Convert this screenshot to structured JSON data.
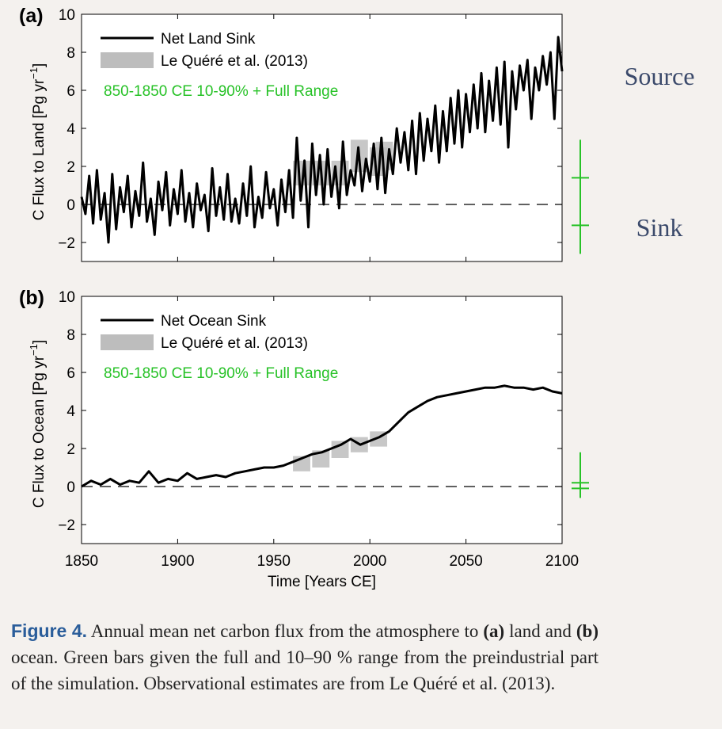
{
  "chart_data": [
    {
      "type": "line",
      "panel_label": "(a)",
      "ylabel": "C Flux to Land [Pg yr",
      "ylabel_exp": "−1",
      "ylabel_close": "]",
      "xlim": [
        1850,
        2100
      ],
      "ylim": [
        -3,
        10
      ],
      "yticks": [
        "−2",
        "0",
        "2",
        "4",
        "6",
        "8",
        "10"
      ],
      "ytick_values": [
        -2,
        0,
        2,
        4,
        6,
        8,
        10
      ],
      "legend": {
        "line_label": "Net Land Sink",
        "box_label": "Le Quéré et al. (2013)",
        "range_label": "850-1850 CE 10-90% + Full Range"
      },
      "annotations": {
        "upper": "Source",
        "lower": "Sink"
      },
      "series": [
        {
          "name": "Net Land Sink",
          "x": [
            1850,
            1852,
            1854,
            1856,
            1858,
            1860,
            1862,
            1864,
            1866,
            1868,
            1870,
            1872,
            1874,
            1876,
            1878,
            1880,
            1882,
            1884,
            1886,
            1888,
            1890,
            1892,
            1894,
            1896,
            1898,
            1900,
            1902,
            1904,
            1906,
            1908,
            1910,
            1912,
            1914,
            1916,
            1918,
            1920,
            1922,
            1924,
            1926,
            1928,
            1930,
            1932,
            1934,
            1936,
            1938,
            1940,
            1942,
            1944,
            1946,
            1948,
            1950,
            1952,
            1954,
            1956,
            1958,
            1960,
            1962,
            1964,
            1966,
            1968,
            1970,
            1972,
            1974,
            1976,
            1978,
            1980,
            1982,
            1984,
            1986,
            1988,
            1990,
            1992,
            1994,
            1996,
            1998,
            2000,
            2002,
            2004,
            2006,
            2008,
            2010,
            2012,
            2014,
            2016,
            2018,
            2020,
            2022,
            2024,
            2026,
            2028,
            2030,
            2032,
            2034,
            2036,
            2038,
            2040,
            2042,
            2044,
            2046,
            2048,
            2050,
            2052,
            2054,
            2056,
            2058,
            2060,
            2062,
            2064,
            2066,
            2068,
            2070,
            2072,
            2074,
            2076,
            2078,
            2080,
            2082,
            2084,
            2086,
            2088,
            2090,
            2092,
            2094,
            2096,
            2098,
            2100
          ],
          "values": [
            0.4,
            -0.5,
            1.5,
            -1.0,
            1.8,
            -0.8,
            0.6,
            -2.0,
            1.6,
            -1.3,
            0.9,
            -0.4,
            1.5,
            -1.2,
            0.7,
            -0.6,
            2.2,
            -0.9,
            0.3,
            -1.6,
            1.2,
            -0.3,
            1.7,
            -1.1,
            0.8,
            -0.5,
            1.8,
            -0.9,
            0.6,
            -1.2,
            1.1,
            -0.3,
            0.5,
            -1.4,
            1.9,
            -0.6,
            0.9,
            -0.8,
            1.6,
            -0.9,
            0.3,
            -1.0,
            1.1,
            -0.6,
            2.0,
            -1.2,
            0.4,
            -0.7,
            1.7,
            -0.2,
            0.8,
            -1.1,
            1.3,
            -0.4,
            1.8,
            -0.7,
            3.5,
            0.2,
            2.3,
            -1.2,
            3.2,
            0.5,
            2.6,
            0.0,
            2.9,
            0.4,
            2.0,
            -0.2,
            3.3,
            0.5,
            1.8,
            1.0,
            3.0,
            0.7,
            2.4,
            1.2,
            3.2,
            0.8,
            3.5,
            0.6,
            2.9,
            1.6,
            4.0,
            2.2,
            3.8,
            1.8,
            4.4,
            1.6,
            4.8,
            2.3,
            4.5,
            2.8,
            5.2,
            2.2,
            4.9,
            2.8,
            5.6,
            3.2,
            6.0,
            3.0,
            5.8,
            3.8,
            6.3,
            4.0,
            6.9,
            3.8,
            6.5,
            4.4,
            7.2,
            4.2,
            7.5,
            3.0,
            7.0,
            5.0,
            7.3,
            6.0,
            7.6,
            4.5,
            7.2,
            6.0,
            7.8,
            6.3,
            8.0,
            4.5,
            8.8,
            7.0
          ]
        }
      ],
      "le_quere_boxes": [
        {
          "x0": 1960,
          "x1": 1969,
          "low": 1.0,
          "high": 2.3
        },
        {
          "x0": 1970,
          "x1": 1979,
          "low": 1.0,
          "high": 2.3
        },
        {
          "x0": 1980,
          "x1": 1989,
          "low": 1.0,
          "high": 2.3
        },
        {
          "x0": 1990,
          "x1": 1999,
          "low": 1.7,
          "high": 3.4
        },
        {
          "x0": 2000,
          "x1": 2009,
          "low": 1.5,
          "high": 3.0
        },
        {
          "x0": 2003,
          "x1": 2012,
          "low": 1.8,
          "high": 3.3
        }
      ],
      "preindustrial_range": {
        "full": [
          -2.6,
          3.4
        ],
        "p10": -1.1,
        "p90": 1.4
      }
    },
    {
      "type": "line",
      "panel_label": "(b)",
      "ylabel": "C Flux to Ocean [Pg yr",
      "ylabel_exp": "−1",
      "ylabel_close": "]",
      "xlim": [
        1850,
        2100
      ],
      "ylim": [
        -3,
        10
      ],
      "xticks": [
        "1850",
        "1900",
        "1950",
        "2000",
        "2050",
        "2100"
      ],
      "xtick_values": [
        1850,
        1900,
        1950,
        2000,
        2050,
        2100
      ],
      "yticks": [
        "−2",
        "0",
        "2",
        "4",
        "6",
        "8",
        "10"
      ],
      "ytick_values": [
        -2,
        0,
        2,
        4,
        6,
        8,
        10
      ],
      "xlabel": "Time [Years CE]",
      "legend": {
        "line_label": "Net Ocean Sink",
        "box_label": "Le Quéré et al. (2013)",
        "range_label": "850-1850 CE 10-90% + Full Range"
      },
      "series": [
        {
          "name": "Net Ocean Sink",
          "x": [
            1850,
            1855,
            1860,
            1865,
            1870,
            1875,
            1880,
            1885,
            1890,
            1895,
            1900,
            1905,
            1910,
            1915,
            1920,
            1925,
            1930,
            1935,
            1940,
            1945,
            1950,
            1955,
            1960,
            1965,
            1970,
            1975,
            1980,
            1985,
            1990,
            1995,
            2000,
            2005,
            2010,
            2015,
            2020,
            2025,
            2030,
            2035,
            2040,
            2045,
            2050,
            2055,
            2060,
            2065,
            2070,
            2075,
            2080,
            2085,
            2090,
            2095,
            2100
          ],
          "values": [
            0.0,
            0.3,
            0.1,
            0.4,
            0.1,
            0.3,
            0.2,
            0.8,
            0.2,
            0.4,
            0.3,
            0.7,
            0.4,
            0.5,
            0.6,
            0.5,
            0.7,
            0.8,
            0.9,
            1.0,
            1.0,
            1.1,
            1.3,
            1.5,
            1.7,
            1.8,
            2.0,
            2.2,
            2.5,
            2.2,
            2.4,
            2.6,
            2.9,
            3.4,
            3.9,
            4.2,
            4.5,
            4.7,
            4.8,
            4.9,
            5.0,
            5.1,
            5.2,
            5.2,
            5.3,
            5.2,
            5.2,
            5.1,
            5.2,
            5.0,
            4.9
          ]
        }
      ],
      "le_quere_boxes": [
        {
          "x0": 1960,
          "x1": 1969,
          "low": 0.8,
          "high": 1.6
        },
        {
          "x0": 1970,
          "x1": 1979,
          "low": 1.0,
          "high": 1.9
        },
        {
          "x0": 1980,
          "x1": 1989,
          "low": 1.5,
          "high": 2.4
        },
        {
          "x0": 1990,
          "x1": 1999,
          "low": 1.8,
          "high": 2.6
        },
        {
          "x0": 2000,
          "x1": 2009,
          "low": 2.1,
          "high": 2.9
        }
      ],
      "preindustrial_range": {
        "full": [
          -0.6,
          1.8
        ],
        "p10": -0.1,
        "p90": 0.2
      }
    }
  ],
  "caption": {
    "label": "Figure 4.",
    "part1": " Annual mean net carbon flux from the atmosphere to ",
    "a": "(a)",
    "part2": " land and ",
    "b": "(b)",
    "part3": " ocean. Green bars given the full and 10–90 % range from the preindustrial part of the simulation. Observational estimates are from Le Quéré et al. (2013)."
  },
  "colors": {
    "line": "#000000",
    "box": "#bdbdbd",
    "green": "#27c227",
    "annotation": "#3b4a6b"
  }
}
